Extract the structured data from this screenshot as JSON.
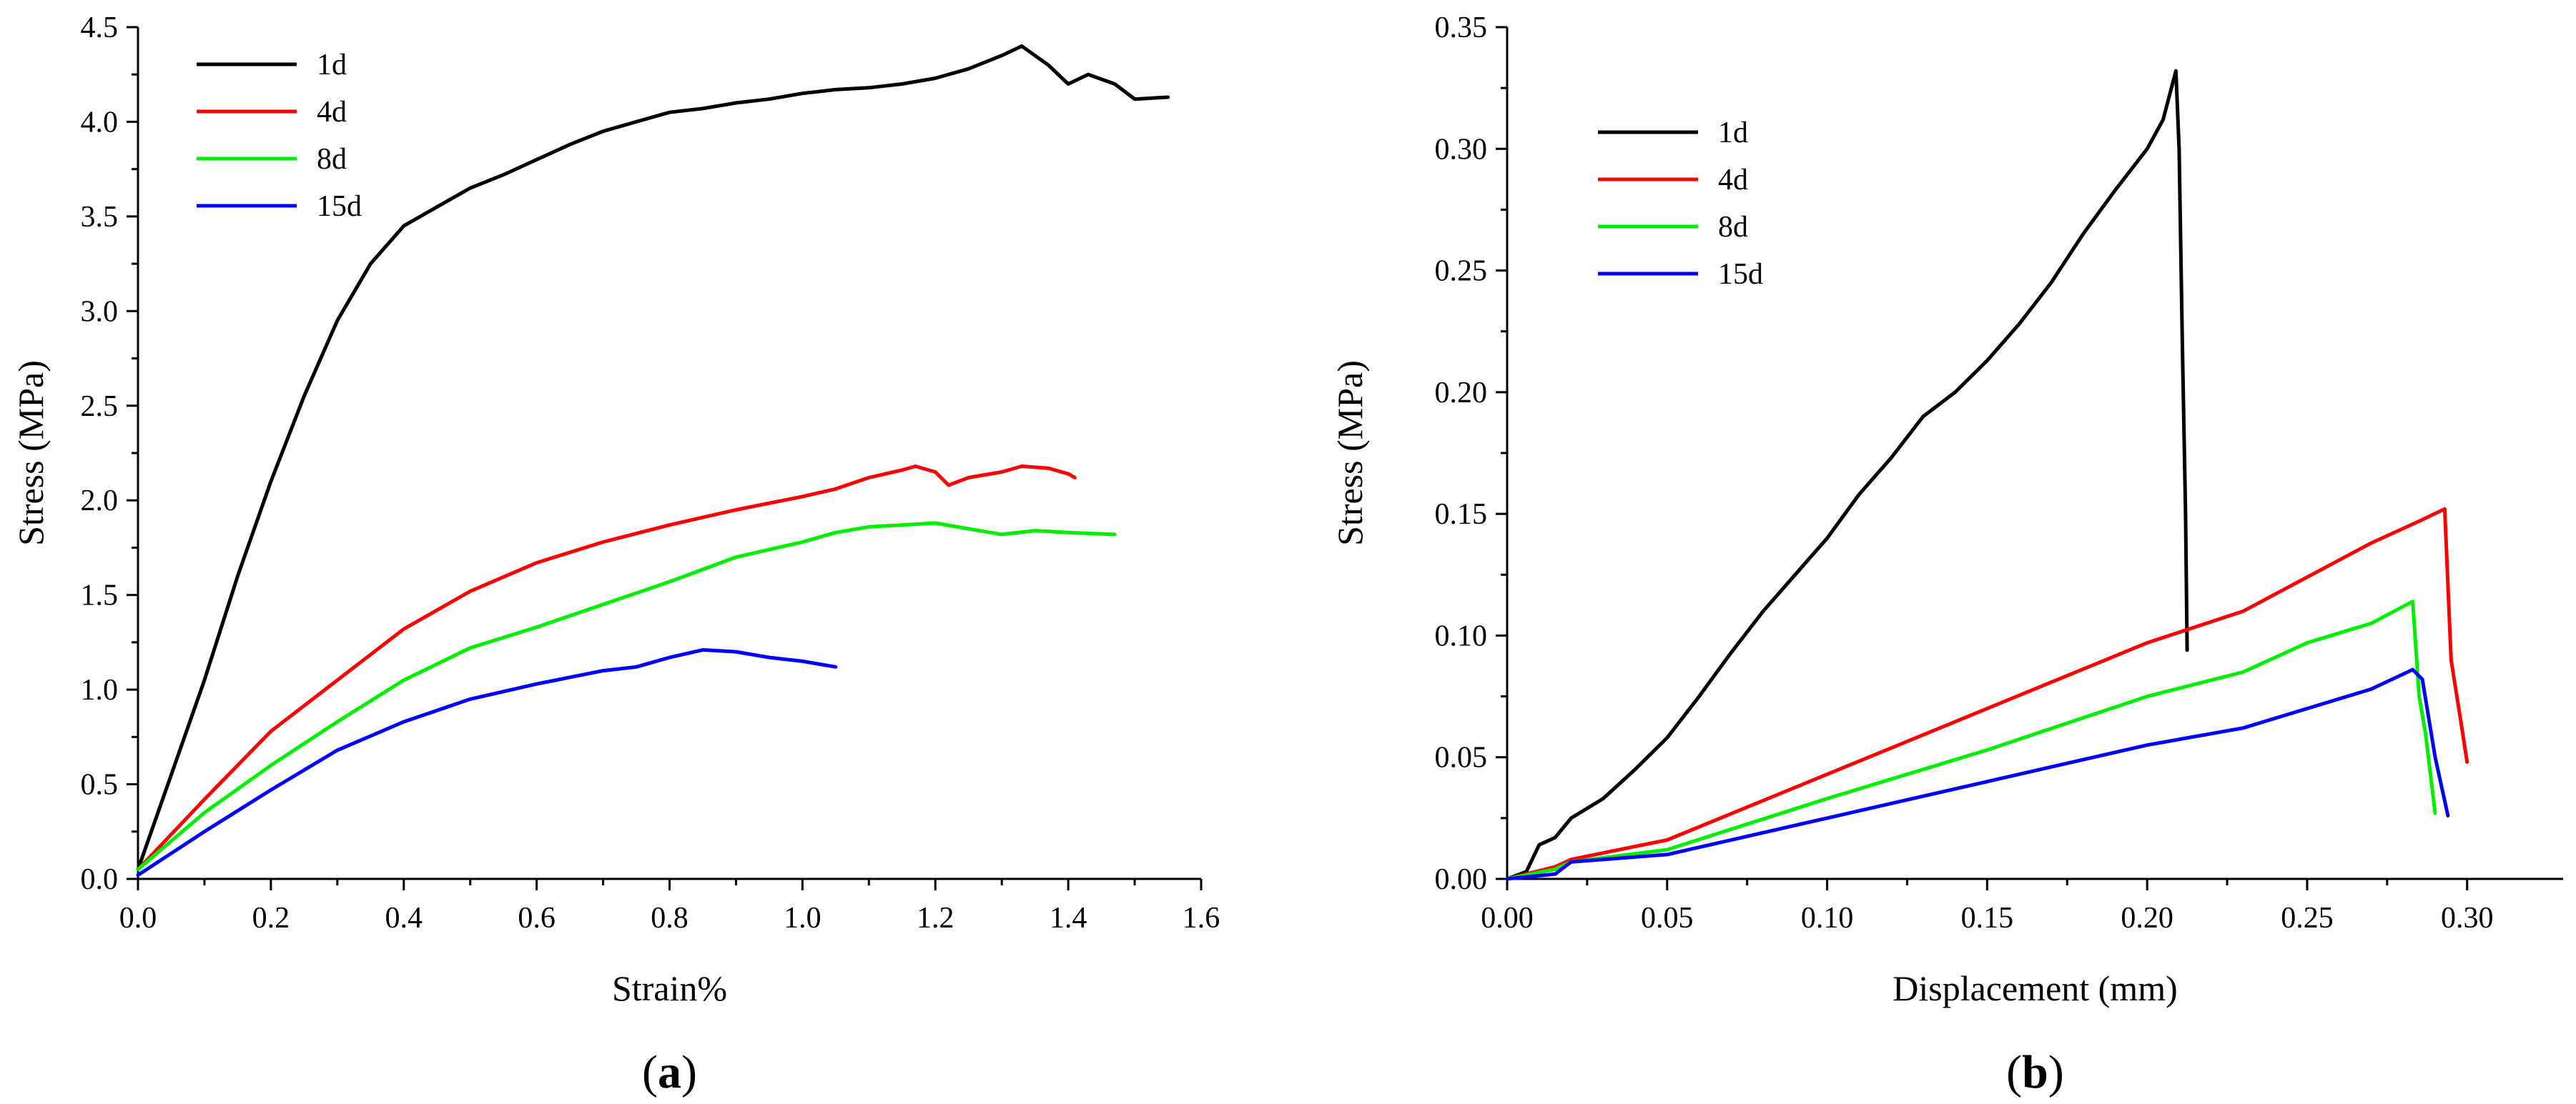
{
  "chart_data": [
    {
      "type": "line",
      "panel_label": "a",
      "title": "",
      "xlabel": "Strain%",
      "ylabel": "Stress (MPa)",
      "xlim": [
        0,
        1.6
      ],
      "ylim": [
        0,
        4.5
      ],
      "xticks": [
        0.0,
        0.2,
        0.4,
        0.6,
        0.8,
        1.0,
        1.2,
        1.4,
        1.6
      ],
      "xtick_labels": [
        "0.0",
        "0.2",
        "0.4",
        "0.6",
        "0.8",
        "1.0",
        "1.2",
        "1.4",
        "1.6"
      ],
      "yticks": [
        0.0,
        0.5,
        1.0,
        1.5,
        2.0,
        2.5,
        3.0,
        3.5,
        4.0,
        4.5
      ],
      "ytick_labels": [
        "0.0",
        "0.5",
        "1.0",
        "1.5",
        "2.0",
        "2.5",
        "3.0",
        "3.5",
        "4.0",
        "4.5"
      ],
      "legend": "top-left",
      "series": [
        {
          "name": "1d",
          "color": "#000000",
          "x": [
            0,
            0.05,
            0.1,
            0.15,
            0.2,
            0.25,
            0.3,
            0.35,
            0.4,
            0.45,
            0.5,
            0.55,
            0.6,
            0.65,
            0.7,
            0.75,
            0.8,
            0.85,
            0.9,
            0.95,
            1.0,
            1.05,
            1.1,
            1.15,
            1.2,
            1.25,
            1.3,
            1.33,
            1.37,
            1.4,
            1.43,
            1.47,
            1.5,
            1.55
          ],
          "y": [
            0.05,
            0.55,
            1.05,
            1.6,
            2.1,
            2.55,
            2.95,
            3.25,
            3.45,
            3.55,
            3.65,
            3.72,
            3.8,
            3.88,
            3.95,
            4.0,
            4.05,
            4.07,
            4.1,
            4.12,
            4.15,
            4.17,
            4.18,
            4.2,
            4.23,
            4.28,
            4.35,
            4.4,
            4.3,
            4.2,
            4.25,
            4.2,
            4.12,
            4.13
          ]
        },
        {
          "name": "4d",
          "color": "#ff0000",
          "x": [
            0,
            0.1,
            0.2,
            0.3,
            0.4,
            0.5,
            0.6,
            0.7,
            0.8,
            0.9,
            1.0,
            1.05,
            1.1,
            1.15,
            1.17,
            1.2,
            1.22,
            1.25,
            1.3,
            1.33,
            1.37,
            1.4,
            1.41
          ],
          "y": [
            0.05,
            0.42,
            0.78,
            1.05,
            1.32,
            1.52,
            1.67,
            1.78,
            1.87,
            1.95,
            2.02,
            2.06,
            2.12,
            2.16,
            2.18,
            2.15,
            2.08,
            2.12,
            2.15,
            2.18,
            2.17,
            2.14,
            2.12
          ]
        },
        {
          "name": "8d",
          "color": "#00ee00",
          "x": [
            0,
            0.1,
            0.2,
            0.3,
            0.4,
            0.5,
            0.6,
            0.7,
            0.8,
            0.9,
            1.0,
            1.05,
            1.1,
            1.15,
            1.2,
            1.25,
            1.3,
            1.35,
            1.4,
            1.47
          ],
          "y": [
            0.05,
            0.35,
            0.6,
            0.83,
            1.05,
            1.22,
            1.33,
            1.45,
            1.57,
            1.7,
            1.78,
            1.83,
            1.86,
            1.87,
            1.88,
            1.85,
            1.82,
            1.84,
            1.83,
            1.82
          ]
        },
        {
          "name": "15d",
          "color": "#0000ff",
          "x": [
            0,
            0.1,
            0.2,
            0.3,
            0.4,
            0.5,
            0.6,
            0.7,
            0.75,
            0.8,
            0.85,
            0.9,
            0.95,
            1.0,
            1.05
          ],
          "y": [
            0.02,
            0.25,
            0.47,
            0.68,
            0.83,
            0.95,
            1.03,
            1.1,
            1.12,
            1.17,
            1.21,
            1.2,
            1.17,
            1.15,
            1.12
          ]
        }
      ]
    },
    {
      "type": "line",
      "panel_label": "b",
      "title": "",
      "xlabel": "Displacement (mm)",
      "ylabel": "Stress (MPa)",
      "xlim": [
        0,
        0.33
      ],
      "ylim": [
        0,
        0.35
      ],
      "xticks": [
        0.0,
        0.05,
        0.1,
        0.15,
        0.2,
        0.25,
        0.3
      ],
      "xtick_labels": [
        "0.00",
        "0.05",
        "0.10",
        "0.15",
        "0.20",
        "0.25",
        "0.30"
      ],
      "yticks": [
        0.0,
        0.05,
        0.1,
        0.15,
        0.2,
        0.25,
        0.3,
        0.35
      ],
      "ytick_labels": [
        "0.00",
        "0.05",
        "0.10",
        "0.15",
        "0.20",
        "0.25",
        "0.30",
        "0.35"
      ],
      "legend": "top-left",
      "series": [
        {
          "name": "1d",
          "color": "#000000",
          "x": [
            0,
            0.006,
            0.01,
            0.015,
            0.02,
            0.03,
            0.04,
            0.05,
            0.06,
            0.07,
            0.08,
            0.09,
            0.1,
            0.11,
            0.12,
            0.13,
            0.14,
            0.15,
            0.16,
            0.17,
            0.18,
            0.19,
            0.2,
            0.205,
            0.209,
            0.21,
            0.211,
            0.212,
            0.2125
          ],
          "y": [
            0,
            0.003,
            0.014,
            0.017,
            0.025,
            0.033,
            0.045,
            0.058,
            0.075,
            0.093,
            0.11,
            0.125,
            0.14,
            0.158,
            0.173,
            0.19,
            0.2,
            0.213,
            0.228,
            0.245,
            0.265,
            0.283,
            0.3,
            0.312,
            0.332,
            0.3,
            0.22,
            0.15,
            0.094
          ]
        },
        {
          "name": "4d",
          "color": "#ff0000",
          "x": [
            0,
            0.015,
            0.02,
            0.05,
            0.1,
            0.15,
            0.2,
            0.23,
            0.25,
            0.27,
            0.285,
            0.293,
            0.295,
            0.298,
            0.3
          ],
          "y": [
            0,
            0.005,
            0.008,
            0.016,
            0.043,
            0.07,
            0.097,
            0.11,
            0.124,
            0.138,
            0.147,
            0.152,
            0.09,
            0.065,
            0.048
          ]
        },
        {
          "name": "8d",
          "color": "#00ee00",
          "x": [
            0,
            0.015,
            0.02,
            0.05,
            0.1,
            0.15,
            0.2,
            0.23,
            0.25,
            0.27,
            0.283,
            0.285,
            0.287,
            0.29
          ],
          "y": [
            0,
            0.004,
            0.007,
            0.012,
            0.033,
            0.053,
            0.075,
            0.085,
            0.097,
            0.105,
            0.114,
            0.075,
            0.06,
            0.027
          ]
        },
        {
          "name": "15d",
          "color": "#0000ff",
          "x": [
            0,
            0.015,
            0.02,
            0.05,
            0.1,
            0.15,
            0.2,
            0.23,
            0.25,
            0.27,
            0.283,
            0.286,
            0.29,
            0.294
          ],
          "y": [
            0,
            0.002,
            0.007,
            0.01,
            0.025,
            0.04,
            0.055,
            0.062,
            0.07,
            0.078,
            0.086,
            0.082,
            0.05,
            0.026
          ]
        }
      ]
    }
  ]
}
